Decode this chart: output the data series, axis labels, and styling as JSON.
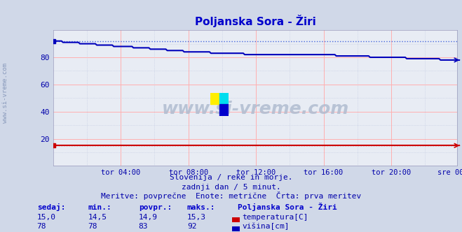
{
  "title": "Poljanska Sora - Žiri",
  "bg_color": "#d0d8e8",
  "plot_bg_color": "#e8ecf4",
  "grid_color_red": "#ffb0b0",
  "grid_color_blue": "#c0c8e0",
  "xlim": [
    0,
    287
  ],
  "ylim": [
    0,
    100
  ],
  "yticks": [
    20,
    40,
    60,
    80
  ],
  "xtick_labels": [
    "tor 04:00",
    "tor 08:00",
    "tor 12:00",
    "tor 16:00",
    "tor 20:00",
    "sre 00:00"
  ],
  "xtick_positions": [
    48,
    96,
    144,
    192,
    240,
    287
  ],
  "temp_color": "#cc0000",
  "height_color": "#0000bb",
  "temp_dot_color": "#dd4444",
  "height_dot_color": "#4466dd",
  "watermark_text": "www.si-vreme.com",
  "subtitle1": "Slovenija / reke in morje.",
  "subtitle2": "zadnji dan / 5 minut.",
  "subtitle3": "Meritve: povprečne  Enote: metrične  Črta: prva meritev",
  "legend_title": "Poljanska Sora - Žiri",
  "legend_items": [
    "temperatura[C]",
    "višina[cm]"
  ],
  "legend_colors": [
    "#cc0000",
    "#0000bb"
  ],
  "table_headers": [
    "sedaj:",
    "min.:",
    "povpr.:",
    "maks.:"
  ],
  "table_temp": [
    "15,0",
    "14,5",
    "14,9",
    "15,3"
  ],
  "table_height": [
    "78",
    "78",
    "83",
    "92"
  ],
  "temp_value": 15.0,
  "height_avg": 92.0,
  "height_start": 92,
  "height_end": 78,
  "n_points": 288
}
